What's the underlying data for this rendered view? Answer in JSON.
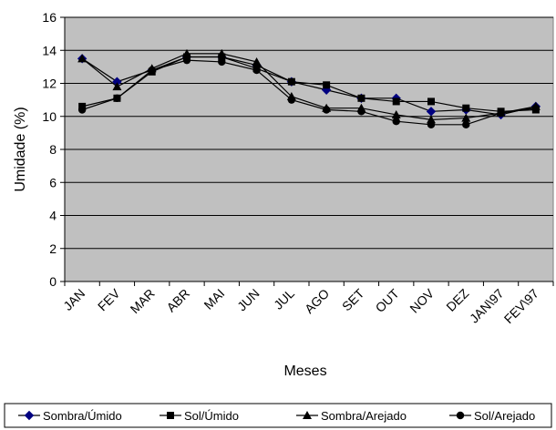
{
  "chart_data": {
    "type": "line",
    "title": "",
    "xlabel": "Meses",
    "ylabel": "Umidade (%)",
    "ylim": [
      0,
      16
    ],
    "yticks": [
      0,
      2,
      4,
      6,
      8,
      10,
      12,
      14,
      16
    ],
    "grid": true,
    "legend_position": "bottom",
    "categories": [
      "JAN",
      "FEV",
      "MAR",
      "ABR",
      "MAI",
      "JUN",
      "JUL",
      "AGO",
      "SET",
      "OUT",
      "NOV",
      "DEZ",
      "JAN\\97",
      "FEV\\97"
    ],
    "series": [
      {
        "name": "Sombra/Úmido",
        "marker": "diamond",
        "x": [
          0.5,
          1.5,
          2.5,
          3.5,
          4.5,
          5.5,
          6.5,
          7.5,
          8.5,
          9.5,
          10.5,
          11.5,
          12.5,
          13.5
        ],
        "values": [
          13.5,
          12.1,
          12.8,
          13.6,
          13.6,
          13.1,
          12.1,
          11.6,
          11.1,
          11.1,
          10.3,
          10.4,
          10.1,
          10.6
        ]
      },
      {
        "name": "Sol/Úmido",
        "marker": "square",
        "x": [
          0.5,
          1.5,
          2.5,
          3.5,
          4.5,
          5.5,
          6.5,
          7.5,
          8.5,
          9.5,
          10.5,
          11.5,
          12.5,
          13.5
        ],
        "values": [
          10.6,
          11.1,
          12.7,
          13.6,
          13.6,
          12.9,
          12.1,
          11.9,
          11.1,
          10.9,
          10.9,
          10.5,
          10.3,
          10.4
        ]
      },
      {
        "name": "Sombra/Arejado",
        "marker": "triangle",
        "x": [
          0.5,
          1.5,
          2.5,
          3.5,
          4.5,
          5.5,
          6.5,
          7.5,
          8.5,
          9.5,
          10.5,
          11.5,
          12.5,
          13.5
        ],
        "values": [
          13.5,
          11.8,
          12.9,
          13.8,
          13.8,
          13.3,
          11.2,
          10.5,
          10.5,
          10.1,
          9.8,
          9.9,
          10.2,
          10.6
        ]
      },
      {
        "name": "Sol/Arejado",
        "marker": "circle",
        "x": [
          0.5,
          1.5,
          2.5,
          3.5,
          4.5,
          5.5,
          6.5,
          7.5,
          8.5,
          9.5,
          10.5,
          11.5,
          12.5,
          13.5
        ],
        "values": [
          10.4,
          11.1,
          12.8,
          13.4,
          13.3,
          12.8,
          11.0,
          10.4,
          10.3,
          9.7,
          9.5,
          9.5,
          10.2,
          10.5
        ]
      }
    ]
  }
}
